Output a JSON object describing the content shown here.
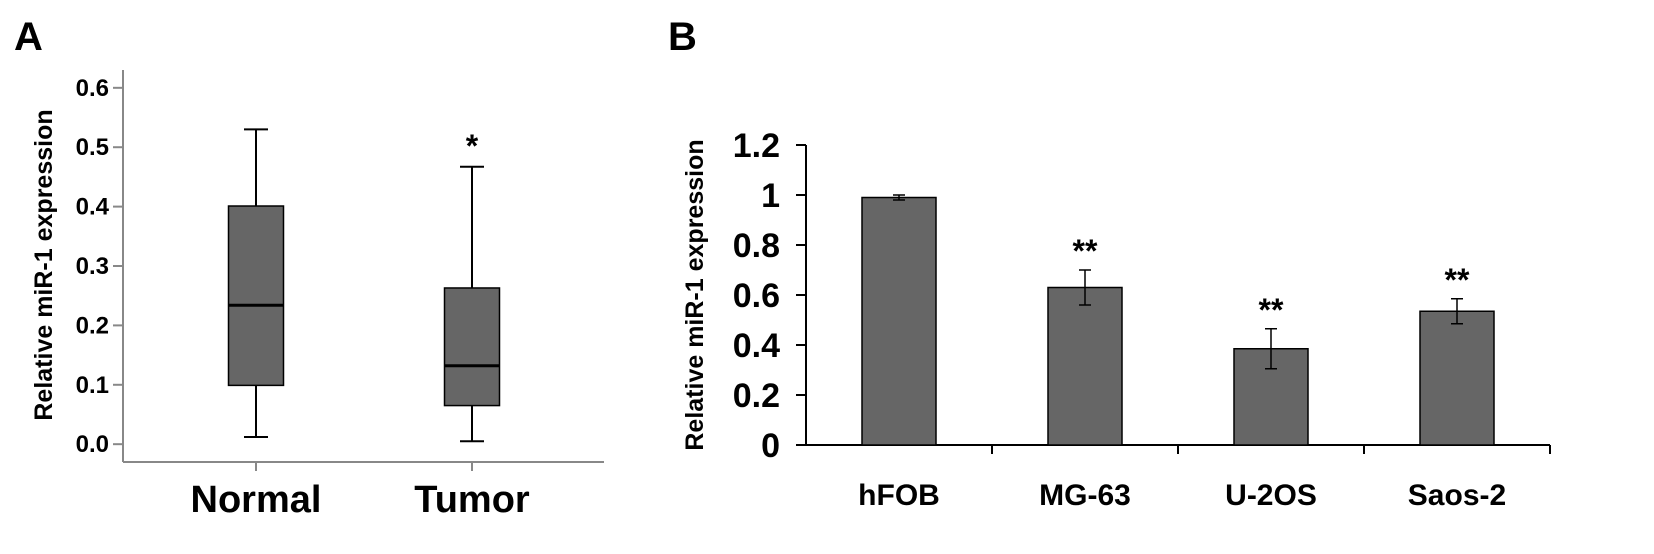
{
  "chart_data": [
    {
      "panel": "A",
      "type": "box",
      "ylabel": "Relative miR-1 expression",
      "ylim": [
        -0.03,
        0.63
      ],
      "yticks": [
        0.0,
        0.1,
        0.2,
        0.3,
        0.4,
        0.5,
        0.6
      ],
      "ytick_labels": [
        "0.0",
        "0.1",
        "0.2",
        "0.3",
        "0.4",
        "0.5",
        "0.6"
      ],
      "categories": [
        "Normal",
        "Tumor"
      ],
      "boxes": [
        {
          "category": "Normal",
          "min": 0.012,
          "q1": 0.099,
          "median": 0.234,
          "q3": 0.401,
          "max": 0.53,
          "annotation": ""
        },
        {
          "category": "Tumor",
          "min": 0.005,
          "q1": 0.065,
          "median": 0.132,
          "q3": 0.263,
          "max": 0.467,
          "annotation": "*"
        }
      ],
      "box_color": "#666666"
    },
    {
      "panel": "B",
      "type": "bar",
      "ylabel": "Relative miR-1 expression",
      "ylim": [
        0,
        1.2
      ],
      "yticks": [
        0,
        0.2,
        0.4,
        0.6,
        0.8,
        1.0,
        1.2
      ],
      "ytick_labels": [
        "0",
        "0.2",
        "0.4",
        "0.6",
        "0.8",
        "1",
        "1.2"
      ],
      "categories": [
        "hFOB",
        "MG-63",
        "U-2OS",
        "Saos-2"
      ],
      "values": [
        0.99,
        0.63,
        0.385,
        0.535
      ],
      "errors": [
        0.01,
        0.07,
        0.08,
        0.05
      ],
      "annotations": [
        "",
        "**",
        "**",
        "**"
      ],
      "bar_color": "#666666"
    }
  ]
}
